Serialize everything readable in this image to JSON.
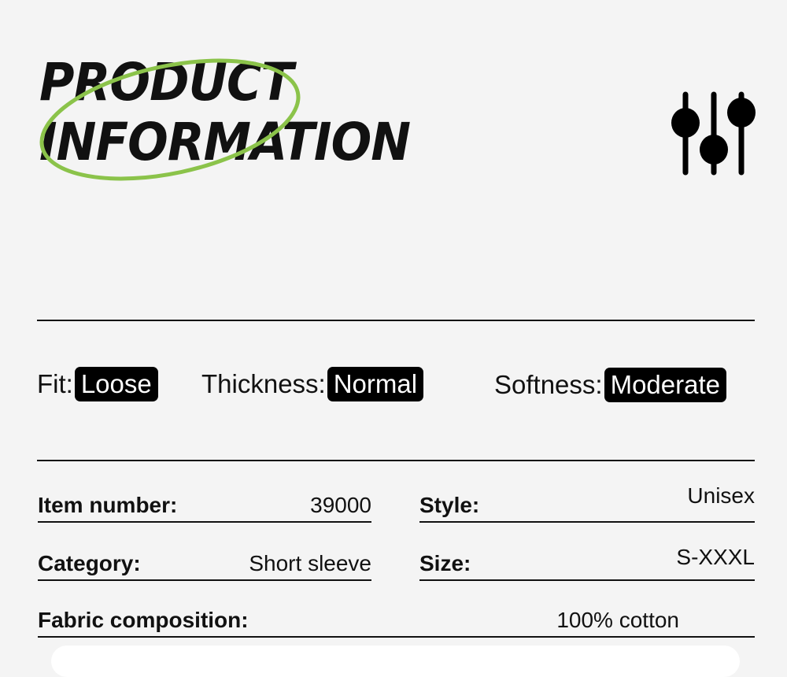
{
  "header": {
    "title_line1": "PRODUCT",
    "title_line2": "INFORMATION",
    "accent_color": "#8bc34a",
    "icon": "sliders-icon"
  },
  "attributes": [
    {
      "label": "Fit:",
      "value": "Loose"
    },
    {
      "label": "Thickness:",
      "value": "Normal"
    },
    {
      "label": "Softness:",
      "value": "Moderate"
    }
  ],
  "details": {
    "item_number": {
      "label": "Item number:",
      "value": "39000"
    },
    "style": {
      "label": "Style:",
      "value": "Unisex"
    },
    "category": {
      "label": "Category:",
      "value": "Short sleeve"
    },
    "size": {
      "label": "Size:",
      "value": "S-XXXL"
    },
    "fabric": {
      "label": "Fabric composition:",
      "value": "100% cotton"
    }
  }
}
